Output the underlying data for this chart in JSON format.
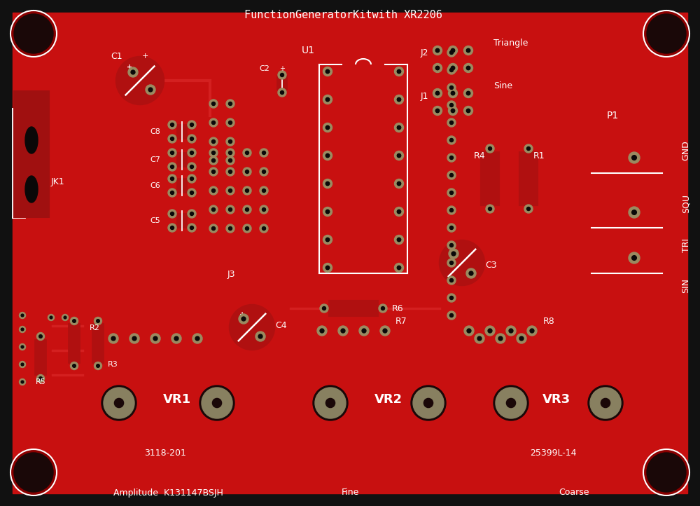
{
  "board_bg": "#c81010",
  "board_edge": "#8b0000",
  "silkscreen": "#ffffff",
  "pad_color": "#9a8a60",
  "hole_color": "#0a0808",
  "title": "FunctionGeneratorKitwith XR2206",
  "bottom_left": "Amplitude  K131147BSJH",
  "bottom_mid": "Fine",
  "bottom_right": "Coarse",
  "part_ref_1": "3118-201",
  "part_ref_2": "25399L-14",
  "fig_w": 10.0,
  "fig_h": 7.22
}
